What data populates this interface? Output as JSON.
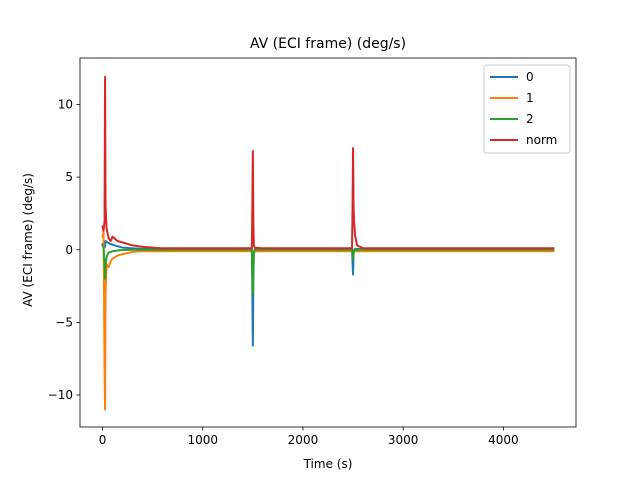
{
  "chart_data": {
    "type": "line",
    "title": "AV (ECI frame) (deg/s)",
    "xlabel": "Time (s)",
    "ylabel": "AV (ECI frame) (deg/s)",
    "xlim": [
      -225,
      4725
    ],
    "ylim": [
      -12.2,
      13.2
    ],
    "xticks": [
      0,
      1000,
      2000,
      3000,
      4000
    ],
    "xtick_labels": [
      "0",
      "1000",
      "2000",
      "3000",
      "4000"
    ],
    "yticks": [
      -10,
      -5,
      0,
      5,
      10
    ],
    "ytick_labels": [
      "−10",
      "−5",
      "0",
      "5",
      "10"
    ],
    "grid": false,
    "legend_position": "top-right",
    "series": [
      {
        "name": "0",
        "color": "#1f77b4",
        "x": [
          0,
          10,
          20,
          25,
          30,
          50,
          80,
          120,
          200,
          300,
          400,
          600,
          1000,
          1490,
          1495,
          1500,
          1505,
          1510,
          1520,
          1600,
          2000,
          2490,
          2500,
          2505,
          2510,
          2520,
          2600,
          3000,
          3500,
          4000,
          4500
        ],
        "y": [
          0.4,
          0.4,
          0.5,
          0.2,
          0.6,
          0.5,
          0.4,
          0.3,
          0.15,
          0.1,
          0.05,
          0.05,
          0.05,
          0.05,
          -3.0,
          -6.6,
          -2.0,
          -0.2,
          0.05,
          0.05,
          0.05,
          0.05,
          -1.7,
          -0.3,
          0.0,
          0.05,
          0.05,
          0.05,
          0.05,
          0.05,
          0.05
        ]
      },
      {
        "name": "1",
        "color": "#ff7f0e",
        "x": [
          0,
          10,
          20,
          25,
          30,
          40,
          60,
          80,
          100,
          150,
          200,
          300,
          400,
          600,
          1000,
          1490,
          1500,
          1510,
          1600,
          2000,
          2490,
          2500,
          2510,
          2600,
          3000,
          3500,
          4000,
          4500
        ],
        "y": [
          0.9,
          1.2,
          -8.0,
          -11.0,
          -3.0,
          -1.0,
          -1.2,
          -0.8,
          -0.6,
          -0.4,
          -0.3,
          -0.15,
          -0.1,
          -0.1,
          -0.1,
          -0.1,
          -0.3,
          -0.1,
          -0.1,
          -0.1,
          -0.1,
          -0.2,
          -0.1,
          -0.1,
          -0.1,
          -0.1,
          -0.1,
          -0.1
        ]
      },
      {
        "name": "2",
        "color": "#2ca02c",
        "x": [
          0,
          10,
          20,
          25,
          30,
          40,
          60,
          100,
          150,
          200,
          300,
          600,
          1000,
          1490,
          1500,
          1505,
          1510,
          1520,
          1600,
          2000,
          2490,
          2500,
          2505,
          2510,
          2520,
          2600,
          3000,
          4000,
          4500
        ],
        "y": [
          0.3,
          0.2,
          -1.0,
          -2.0,
          -1.2,
          -0.5,
          -0.2,
          -0.1,
          -0.05,
          -0.02,
          0.0,
          0.0,
          0.0,
          0.0,
          -3.0,
          -1.5,
          -0.3,
          0.0,
          0.0,
          0.0,
          0.0,
          -0.6,
          -0.2,
          0.0,
          0.0,
          0.0,
          0.0,
          0.0,
          0.0
        ]
      },
      {
        "name": "norm",
        "color": "#d62728",
        "x": [
          0,
          10,
          20,
          25,
          30,
          40,
          60,
          80,
          100,
          150,
          200,
          300,
          400,
          600,
          1000,
          1490,
          1495,
          1500,
          1505,
          1510,
          1520,
          1600,
          2000,
          2490,
          2495,
          2500,
          2505,
          2510,
          2520,
          2540,
          2600,
          3000,
          3500,
          4000,
          4500
        ],
        "y": [
          1.6,
          1.3,
          2.0,
          11.9,
          3.0,
          1.5,
          0.8,
          0.6,
          0.9,
          0.6,
          0.5,
          0.3,
          0.2,
          0.1,
          0.1,
          0.1,
          3.0,
          6.8,
          2.0,
          0.3,
          0.15,
          0.1,
          0.1,
          0.1,
          3.0,
          7.0,
          3.0,
          2.0,
          1.0,
          0.3,
          0.1,
          0.1,
          0.1,
          0.1,
          0.1
        ]
      }
    ]
  }
}
